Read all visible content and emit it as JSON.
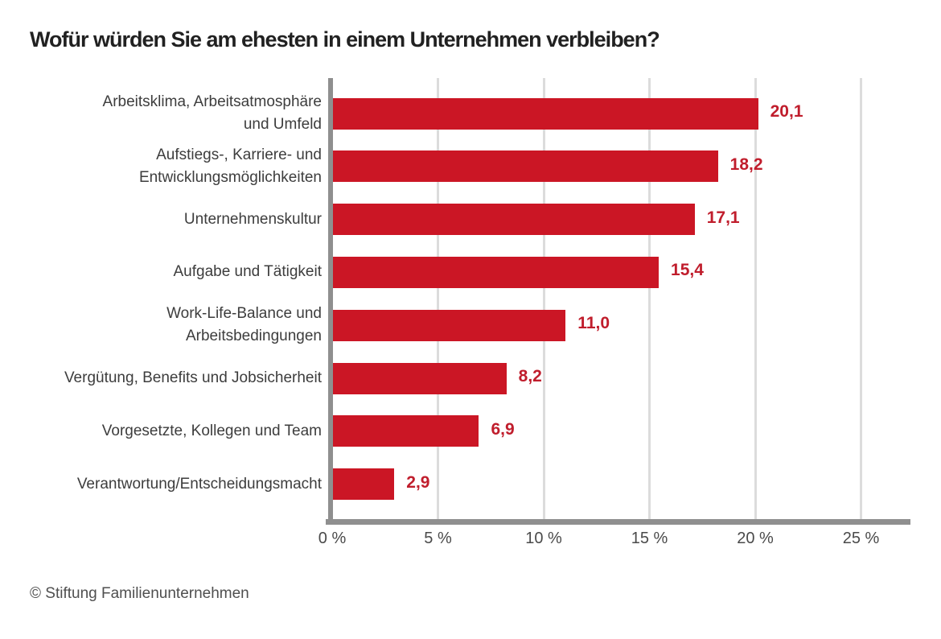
{
  "title": "Wofür würden Sie am ehesten in einem Unternehmen verbleiben?",
  "footer": "© Stiftung Familienunternehmen",
  "chart_data": {
    "type": "bar",
    "orientation": "horizontal",
    "title": "Wofür würden Sie am ehesten in einem Unternehmen verbleiben?",
    "categories": [
      "Arbeitsklima, Arbeitsatmosphäre\nund Umfeld",
      "Aufstiegs-, Karriere- und\nEntwicklungsmöglichkeiten",
      "Unternehmenskultur",
      "Aufgabe und Tätigkeit",
      "Work-Life-Balance und\nArbeitsbedingungen",
      "Vergütung, Benefits und Jobsicherheit",
      "Vorgesetzte, Kollegen und Team",
      "Verantwortung/Entscheidungsmacht"
    ],
    "values": [
      20.1,
      18.2,
      17.1,
      15.4,
      11.0,
      8.2,
      6.9,
      2.9
    ],
    "value_labels": [
      "20,1",
      "18,2",
      "17,1",
      "15,4",
      "11,0",
      "8,2",
      "6,9",
      "2,9"
    ],
    "x_ticks_pct": [
      0,
      5,
      10,
      15,
      20,
      25
    ],
    "x_tick_labels": [
      "0 %",
      "5 %",
      "10 %",
      "15 %",
      "20 %",
      "25 %"
    ],
    "xlim": [
      0,
      27.3
    ],
    "grid": "vertical-only",
    "legend": "none",
    "source": "© Stiftung Familienunternehmen",
    "colors": {
      "bar": "#cb1625",
      "value_label": "#c01d2c",
      "axis": "#8f8f8f",
      "gridline": "#dcdcdc",
      "category_text": "#3d3d3d",
      "tick_text": "#4a4a4a",
      "title_text": "#212121"
    }
  }
}
